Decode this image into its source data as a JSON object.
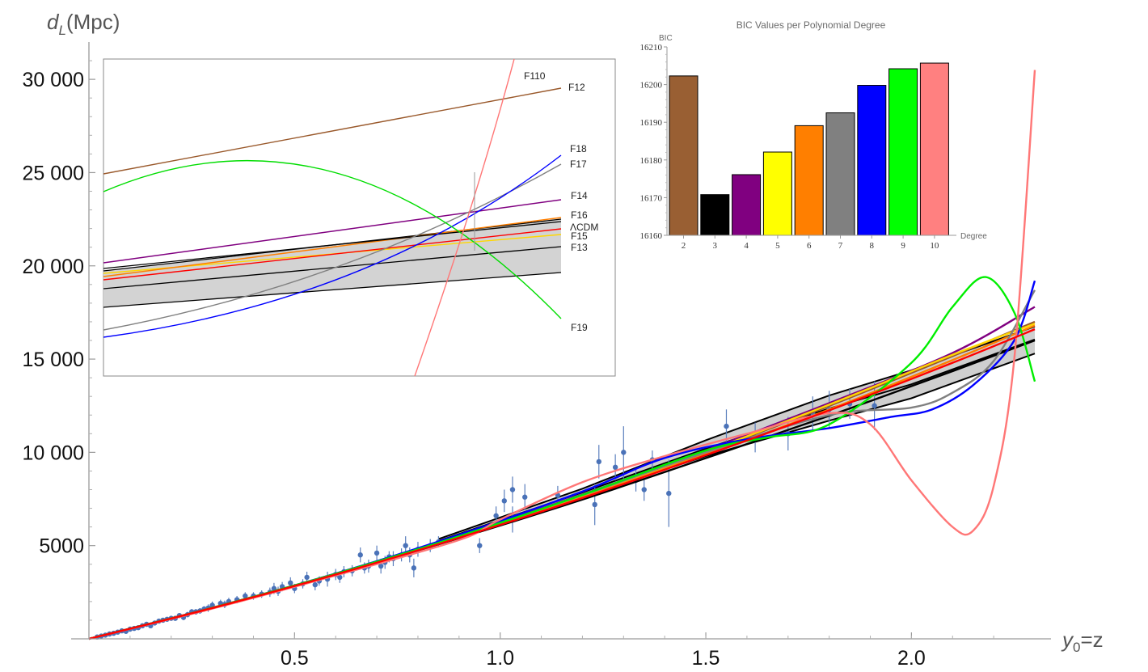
{
  "chart_data": [
    {
      "type": "scatter",
      "subtype": "luminosity-distance with polynomial fits",
      "xlabel_var": "y",
      "xlabel_sub": "0",
      "xlabel_rest": "=z",
      "ylabel_var": "d",
      "ylabel_sub": "L",
      "ylabel_rest": "(Mpc)",
      "xlim": [
        0,
        2.3
      ],
      "ylim": [
        0,
        32000
      ],
      "xticks": [
        0.5,
        1.0,
        1.5,
        2.0
      ],
      "xtick_labels": [
        "0.5",
        "1.0",
        "1.5",
        "2.0"
      ],
      "yticks": [
        5000,
        10000,
        15000,
        20000,
        25000,
        30000
      ],
      "ytick_labels": [
        "5000",
        "10 000",
        "15 000",
        "20 000",
        "25 000",
        "30 000"
      ],
      "band": {
        "lower": [
          [
            0.85,
            5150
          ],
          [
            1.2,
            7650
          ],
          [
            1.5,
            9800
          ],
          [
            1.8,
            11700
          ],
          [
            2.0,
            12900
          ],
          [
            2.3,
            15300
          ]
        ],
        "upper": [
          [
            0.85,
            5350
          ],
          [
            1.2,
            8050
          ],
          [
            1.5,
            10650
          ],
          [
            1.8,
            13050
          ],
          [
            2.0,
            14400
          ],
          [
            2.3,
            16750
          ]
        ],
        "middle": [
          [
            0.85,
            5250
          ],
          [
            1.2,
            7850
          ],
          [
            1.5,
            10200
          ],
          [
            1.8,
            12350
          ],
          [
            2.0,
            13650
          ],
          [
            2.3,
            16050
          ]
        ]
      },
      "series": [
        {
          "name": "F12",
          "color": "#99582a",
          "points": [
            [
              0,
              0
            ],
            [
              0.3,
              1660
            ],
            [
              0.6,
              3490
            ],
            [
              0.9,
              5490
            ],
            [
              1.2,
              7660
            ],
            [
              1.5,
              10000
            ],
            [
              1.8,
              12490
            ],
            [
              2.1,
              15160
            ],
            [
              2.3,
              17000
            ]
          ]
        },
        {
          "name": "F13",
          "color": "#000000",
          "points": [
            [
              0,
              0
            ],
            [
              0.3,
              1660
            ],
            [
              0.6,
              3460
            ],
            [
              0.9,
              5400
            ],
            [
              1.2,
              7470
            ],
            [
              1.5,
              9690
            ],
            [
              1.8,
              11960
            ],
            [
              2.1,
              14350
            ],
            [
              2.3,
              16000
            ]
          ]
        },
        {
          "name": "F14",
          "color": "#800080",
          "points": [
            [
              0,
              0
            ],
            [
              0.3,
              1670
            ],
            [
              0.6,
              3500
            ],
            [
              0.9,
              5540
            ],
            [
              1.2,
              7740
            ],
            [
              1.5,
              10110
            ],
            [
              1.8,
              12640
            ],
            [
              2.1,
              15330
            ],
            [
              2.3,
              17800
            ]
          ]
        },
        {
          "name": "F15",
          "color": "#ffd700",
          "points": [
            [
              0,
              0
            ],
            [
              0.3,
              1660
            ],
            [
              0.6,
              3480
            ],
            [
              0.9,
              5480
            ],
            [
              1.2,
              7650
            ],
            [
              1.5,
              10030
            ],
            [
              1.8,
              12560
            ],
            [
              2.1,
              15230
            ],
            [
              2.3,
              16900
            ]
          ]
        },
        {
          "name": "F16",
          "color": "#ff7f00",
          "points": [
            [
              0,
              0
            ],
            [
              0.3,
              1660
            ],
            [
              0.6,
              3470
            ],
            [
              0.9,
              5450
            ],
            [
              1.2,
              7590
            ],
            [
              1.5,
              9900
            ],
            [
              1.8,
              12300
            ],
            [
              2.1,
              14950
            ],
            [
              2.3,
              16800
            ]
          ]
        },
        {
          "name": "F17",
          "color": "#808080",
          "points": [
            [
              0,
              0
            ],
            [
              0.3,
              1650
            ],
            [
              0.6,
              3480
            ],
            [
              0.9,
              5500
            ],
            [
              1.2,
              7700
            ],
            [
              1.5,
              10000
            ],
            [
              1.8,
              12000
            ],
            [
              2.0,
              12400
            ],
            [
              2.1,
              13200
            ],
            [
              2.2,
              14900
            ],
            [
              2.3,
              18700
            ]
          ]
        },
        {
          "name": "F18",
          "color": "#0000ff",
          "points": [
            [
              0,
              0
            ],
            [
              0.3,
              1650
            ],
            [
              0.6,
              3500
            ],
            [
              0.9,
              5580
            ],
            [
              1.2,
              7900
            ],
            [
              1.4,
              9700
            ],
            [
              1.6,
              10700
            ],
            [
              1.8,
              11300
            ],
            [
              1.95,
              11900
            ],
            [
              2.05,
              12300
            ],
            [
              2.15,
              13600
            ],
            [
              2.25,
              16000
            ],
            [
              2.3,
              19200
            ]
          ]
        },
        {
          "name": "F19",
          "color": "#00ee00",
          "points": [
            [
              0,
              0
            ],
            [
              0.3,
              1660
            ],
            [
              0.6,
              3490
            ],
            [
              0.9,
              5500
            ],
            [
              1.2,
              7720
            ],
            [
              1.5,
              10100
            ],
            [
              1.65,
              10800
            ],
            [
              1.8,
              11500
            ],
            [
              2.0,
              14800
            ],
            [
              2.1,
              17800
            ],
            [
              2.18,
              19400
            ],
            [
              2.25,
              17500
            ],
            [
              2.3,
              13800
            ]
          ]
        },
        {
          "name": "F110",
          "color": "#ff7777",
          "points": [
            [
              0,
              0
            ],
            [
              0.3,
              1620
            ],
            [
              0.6,
              3400
            ],
            [
              0.9,
              5300
            ],
            [
              1.0,
              6400
            ],
            [
              1.2,
              8400
            ],
            [
              1.4,
              9800
            ],
            [
              1.6,
              11000
            ],
            [
              1.8,
              12100
            ],
            [
              1.9,
              11500
            ],
            [
              2.0,
              8500
            ],
            [
              2.1,
              6000
            ],
            [
              2.15,
              5800
            ],
            [
              2.2,
              8200
            ],
            [
              2.25,
              15000
            ],
            [
              2.3,
              30500
            ]
          ]
        },
        {
          "name": "ΛCDM",
          "color": "#ff0000",
          "points": [
            [
              0,
              0
            ],
            [
              0.3,
              1650
            ],
            [
              0.6,
              3450
            ],
            [
              0.9,
              5420
            ],
            [
              1.2,
              7550
            ],
            [
              1.5,
              9850
            ],
            [
              1.8,
              12250
            ],
            [
              2.1,
              14800
            ],
            [
              2.3,
              16600
            ]
          ]
        }
      ],
      "observations": [
        [
          1.3,
          10000,
          1400
        ],
        [
          1.24,
          9500,
          900
        ],
        [
          1.23,
          7200,
          1100
        ],
        [
          1.03,
          8000,
          700
        ],
        [
          1.01,
          7400,
          600
        ],
        [
          0.99,
          6600,
          500
        ],
        [
          1.03,
          6400,
          700
        ],
        [
          1.06,
          7600,
          700
        ],
        [
          1.14,
          7700,
          500
        ],
        [
          1.28,
          9200,
          700
        ],
        [
          1.33,
          8500,
          600
        ],
        [
          1.35,
          8000,
          600
        ],
        [
          1.37,
          9600,
          500
        ],
        [
          1.41,
          7800,
          1800
        ],
        [
          1.55,
          11400,
          900
        ],
        [
          1.62,
          10800,
          800
        ],
        [
          1.7,
          11000,
          900
        ],
        [
          1.76,
          12100,
          900
        ],
        [
          1.91,
          12500,
          1300
        ],
        [
          1.8,
          12300,
          1000
        ],
        [
          1.85,
          12600,
          800
        ],
        [
          0.95,
          5000,
          400
        ],
        [
          0.85,
          5200,
          300
        ],
        [
          0.79,
          3800,
          500
        ],
        [
          0.77,
          5000,
          500
        ],
        [
          0.74,
          4300,
          400
        ],
        [
          0.7,
          4600,
          400
        ],
        [
          0.66,
          4500,
          400
        ],
        [
          0.62,
          3600,
          300
        ],
        [
          0.58,
          3200,
          400
        ],
        [
          0.53,
          3300,
          300
        ],
        [
          0.49,
          3000,
          300
        ],
        [
          0.45,
          2700,
          300
        ],
        [
          0.42,
          2400,
          200
        ],
        [
          0.38,
          2300,
          200
        ],
        [
          0.34,
          2000,
          200
        ],
        [
          0.3,
          1800,
          200
        ],
        [
          0.27,
          1500,
          150
        ],
        [
          0.24,
          1300,
          150
        ],
        [
          0.21,
          1100,
          100
        ],
        [
          0.18,
          1000,
          100
        ],
        [
          0.15,
          700,
          80
        ],
        [
          0.12,
          600,
          80
        ],
        [
          0.09,
          400,
          60
        ],
        [
          0.06,
          300,
          50
        ],
        [
          0.03,
          150,
          30
        ],
        [
          0.5,
          2700,
          250
        ],
        [
          0.56,
          3100,
          250
        ],
        [
          0.61,
          3300,
          300
        ],
        [
          0.68,
          3900,
          350
        ],
        [
          0.72,
          4100,
          350
        ],
        [
          0.76,
          4500,
          350
        ],
        [
          0.4,
          2300,
          200
        ],
        [
          0.36,
          2100,
          200
        ],
        [
          0.32,
          1900,
          200
        ],
        [
          0.28,
          1600,
          150
        ],
        [
          0.25,
          1450,
          150
        ],
        [
          0.22,
          1250,
          130
        ],
        [
          0.19,
          1050,
          120
        ],
        [
          0.16,
          850,
          100
        ],
        [
          0.13,
          700,
          90
        ],
        [
          0.1,
          520,
          70
        ],
        [
          0.07,
          360,
          50
        ],
        [
          0.04,
          200,
          40
        ],
        [
          0.46,
          2550,
          250
        ],
        [
          0.52,
          2950,
          250
        ],
        [
          0.64,
          3650,
          300
        ],
        [
          0.8,
          4800,
          400
        ],
        [
          0.83,
          5000,
          350
        ],
        [
          0.55,
          2900,
          300
        ],
        [
          0.6,
          3450,
          300
        ],
        [
          0.67,
          3800,
          300
        ],
        [
          0.71,
          3900,
          400
        ],
        [
          0.73,
          4400,
          300
        ],
        [
          0.78,
          4500,
          400
        ],
        [
          0.44,
          2500,
          250
        ],
        [
          0.47,
          2800,
          250
        ],
        [
          0.33,
          1850,
          200
        ],
        [
          0.29,
          1650,
          200
        ],
        [
          0.26,
          1450,
          150
        ],
        [
          0.23,
          1150,
          150
        ],
        [
          0.2,
          1100,
          120
        ],
        [
          0.17,
          950,
          100
        ],
        [
          0.14,
          780,
          90
        ],
        [
          0.11,
          560,
          70
        ],
        [
          0.08,
          430,
          60
        ],
        [
          0.05,
          260,
          40
        ],
        [
          0.02,
          100,
          30
        ]
      ],
      "inset": {
        "type": "line",
        "description": "zoom near z≈0.93",
        "labels": [
          "F110",
          "F12",
          "F18",
          "F17",
          "F14",
          "F16",
          "ΛCDM",
          "F15",
          "F13",
          "F19"
        ]
      }
    },
    {
      "type": "bar",
      "title": "BIC Values per Polynomial Degree",
      "xlabel": "Degree",
      "ylabel": "BIC",
      "ylim": [
        16160,
        16210
      ],
      "yticks": [
        16160,
        16170,
        16180,
        16190,
        16200,
        16210
      ],
      "ytick_labels": [
        "16160",
        "16170",
        "16180",
        "16190",
        "16200",
        "16210"
      ],
      "categories": [
        "2",
        "3",
        "4",
        "5",
        "6",
        "7",
        "8",
        "9",
        "10"
      ],
      "values": [
        16202.3,
        16170.8,
        16176.1,
        16182.1,
        16189.1,
        16192.5,
        16199.8,
        16204.2,
        16205.7
      ],
      "colors": [
        "#995f33",
        "#000000",
        "#800080",
        "#ffff00",
        "#ff7f00",
        "#808080",
        "#0000ff",
        "#00ff00",
        "#ff8080"
      ]
    }
  ]
}
